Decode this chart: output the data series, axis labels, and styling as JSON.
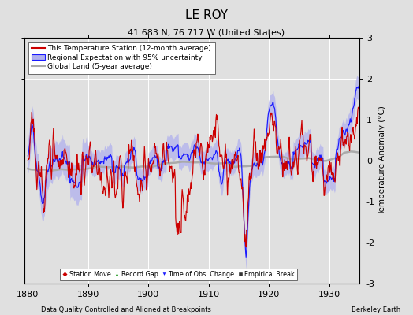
{
  "title": "LE ROY",
  "subtitle": "41.683 N, 76.717 W (United States)",
  "xlabel_bottom": "Data Quality Controlled and Aligned at Breakpoints",
  "xlabel_right": "Berkeley Earth",
  "ylabel": "Temperature Anomaly (°C)",
  "xlim": [
    1879.5,
    1935.0
  ],
  "ylim": [
    -3,
    3
  ],
  "yticks": [
    -3,
    -2,
    -1,
    0,
    1,
    2,
    3
  ],
  "xticks": [
    1880,
    1890,
    1900,
    1910,
    1920,
    1930
  ],
  "bg_color": "#e0e0e0",
  "plot_bg_color": "#e0e0e0",
  "grid_color": "#ffffff",
  "legend_entries": [
    "This Temperature Station (12-month average)",
    "Regional Expectation with 95% uncertainty",
    "Global Land (5-year average)"
  ],
  "station_color": "#cc0000",
  "regional_color": "#1a1aff",
  "regional_fill_color": "#b0b0ee",
  "global_color": "#aaaaaa",
  "title_fontsize": 11,
  "subtitle_fontsize": 8,
  "tick_fontsize": 8,
  "legend_fontsize": 6.5,
  "seed": 42
}
